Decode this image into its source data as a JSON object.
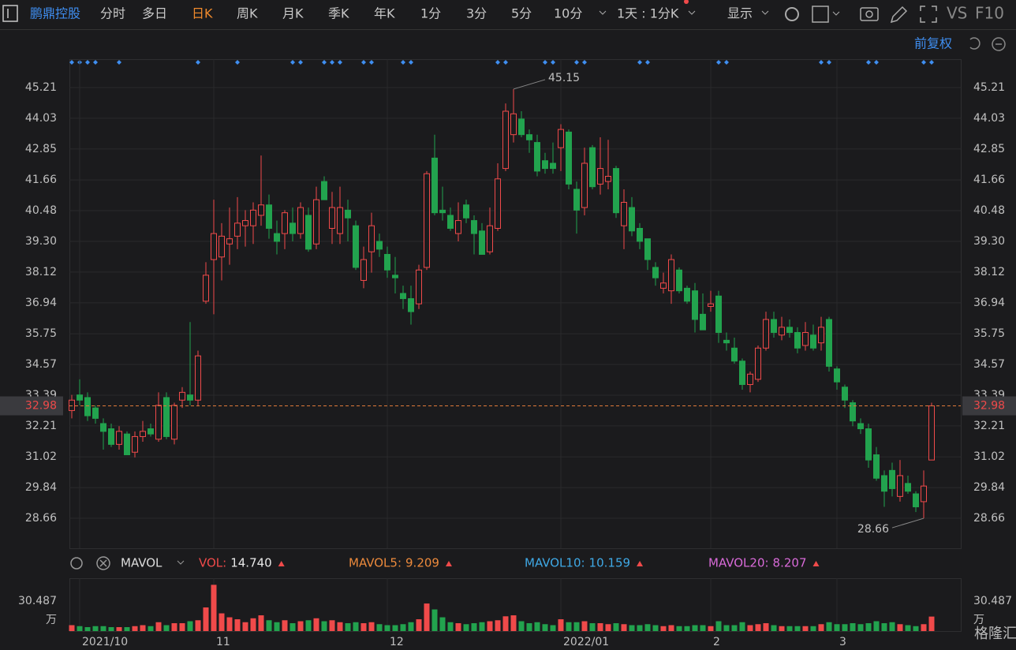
{
  "toolbar": {
    "stock": "鹏鼎控股",
    "tabs": [
      "分时",
      "多日",
      "日K",
      "周K",
      "月K",
      "季K",
      "年K",
      "1分",
      "3分",
      "5分",
      "10分"
    ],
    "active_tab": 2,
    "period": "1天 : 1分K",
    "display": "显示",
    "vs": "VS",
    "f10": "F10"
  },
  "adjust": "前复权",
  "volume_legend": {
    "label": "MAVOL",
    "items": [
      {
        "name": "VOL:",
        "value": "14.740",
        "color": "#f04a4a"
      },
      {
        "name": "MAVOL5:",
        "value": "9.209",
        "color": "#ec8a3c"
      },
      {
        "name": "MAVOL10:",
        "value": "10.159",
        "color": "#3fa9e6"
      },
      {
        "name": "MAVOL20:",
        "value": "8.207",
        "color": "#d86ad8"
      }
    ]
  },
  "watermark": "格隆汇",
  "chart_data": {
    "type": "candlestick",
    "categories": [
      null,
      "2021/10",
      null,
      null,
      null,
      null,
      null,
      null,
      null,
      null,
      null,
      null,
      null,
      null,
      null,
      null,
      null,
      null,
      "11",
      null,
      null,
      null,
      null,
      null,
      null,
      null,
      null,
      null,
      null,
      null,
      null,
      null,
      null,
      null,
      null,
      null,
      null,
      null,
      null,
      null,
      "12",
      null,
      null,
      null,
      null,
      null,
      null,
      null,
      null,
      null,
      null,
      null,
      null,
      null,
      null,
      null,
      null,
      null,
      null,
      null,
      null,
      null,
      "2022/01",
      null,
      null,
      null,
      null,
      null,
      null,
      null,
      null,
      null,
      null,
      null,
      null,
      null,
      null,
      null,
      null,
      null,
      null,
      "2",
      null,
      null,
      null,
      null,
      null,
      null,
      null,
      null,
      null,
      null,
      null,
      null,
      null,
      null,
      null,
      "3",
      null,
      null,
      null,
      null,
      null,
      null,
      null,
      null,
      null,
      null,
      null,
      null
    ],
    "open": [
      32.8,
      33.4,
      33.3,
      32.9,
      32.3,
      32.1,
      31.5,
      31.9,
      31.2,
      31.8,
      32.1,
      31.7,
      33.3,
      31.7,
      33.2,
      33.4,
      33.2,
      37.0,
      38.6,
      38.7,
      39.2,
      39.5,
      39.9,
      39.9,
      40.3,
      40.7,
      39.6,
      39.6,
      40.0,
      39.6,
      40.3,
      39.2,
      41.6,
      39.8,
      39.6,
      40.5,
      39.9,
      37.8,
      38.9,
      39.3,
      38.8,
      38.0,
      37.3,
      37.1,
      36.9,
      38.3,
      42.5,
      40.5,
      40.3,
      39.6,
      40.7,
      40.1,
      39.7,
      38.9,
      39.8,
      42.1,
      43.4,
      44.0,
      43.4,
      43.1,
      42.4,
      42.3,
      42.9,
      43.5,
      41.3,
      40.6,
      42.9,
      41.5,
      41.6,
      42.1,
      39.9,
      40.6,
      39.8,
      39.4,
      38.3,
      37.5,
      37.4,
      38.2,
      37.5,
      37.4,
      36.5,
      36.8,
      37.2,
      35.5,
      35.2,
      34.7,
      33.8,
      34.0,
      35.2,
      36.3,
      35.7,
      36.0,
      35.8,
      35.3,
      35.7,
      35.4,
      36.3,
      34.4,
      33.7,
      33.1,
      32.3,
      32.1,
      31.1,
      30.3,
      30.5,
      29.5,
      30.0,
      29.6,
      29.3,
      30.9
    ],
    "high": [
      33.4,
      34.0,
      33.5,
      33.0,
      32.5,
      32.3,
      32.2,
      32.0,
      32.0,
      32.4,
      32.3,
      33.5,
      33.5,
      33.1,
      33.7,
      36.2,
      35.1,
      38.5,
      40.9,
      40.0,
      40.6,
      41.0,
      40.5,
      40.8,
      42.6,
      41.1,
      40.1,
      40.5,
      40.6,
      40.8,
      40.6,
      41.4,
      41.8,
      41.2,
      41.4,
      40.9,
      40.1,
      39.1,
      40.4,
      39.6,
      39.1,
      38.7,
      37.6,
      37.6,
      38.4,
      42.0,
      43.4,
      41.4,
      40.6,
      40.8,
      40.9,
      40.3,
      40.0,
      40.6,
      42.3,
      44.6,
      45.15,
      44.3,
      43.6,
      43.4,
      42.7,
      43.1,
      43.8,
      43.6,
      41.6,
      42.9,
      43.0,
      43.3,
      43.2,
      42.2,
      41.3,
      41.0,
      40.0,
      39.4,
      38.5,
      38.1,
      38.8,
      38.3,
      37.6,
      37.7,
      37.3,
      37.4,
      37.4,
      35.8,
      35.6,
      34.8,
      34.3,
      35.3,
      36.6,
      36.6,
      36.4,
      36.3,
      36.0,
      36.2,
      36.1,
      36.4,
      36.4,
      34.5,
      33.8,
      33.2,
      32.5,
      32.3,
      31.4,
      30.5,
      30.8,
      30.9,
      30.3,
      29.7,
      30.5,
      33.1
    ],
    "low": [
      32.5,
      33.0,
      32.4,
      32.3,
      31.3,
      31.4,
      31.3,
      31.1,
      31.0,
      31.6,
      31.8,
      31.6,
      31.7,
      31.5,
      32.9,
      33.0,
      33.0,
      36.9,
      36.5,
      37.8,
      38.4,
      39.0,
      39.1,
      39.2,
      39.9,
      39.4,
      38.8,
      39.0,
      39.3,
      39.4,
      38.9,
      39.0,
      40.9,
      39.2,
      39.2,
      39.3,
      38.2,
      37.5,
      38.1,
      38.7,
      37.9,
      37.3,
      36.7,
      36.1,
      36.7,
      38.2,
      40.3,
      40.1,
      39.7,
      39.3,
      40.0,
      38.8,
      38.8,
      38.8,
      39.7,
      42.0,
      43.1,
      43.3,
      42.7,
      41.8,
      41.9,
      41.9,
      42.0,
      41.3,
      39.6,
      40.3,
      41.3,
      41.1,
      41.3,
      40.2,
      39.0,
      39.5,
      39.0,
      38.2,
      37.6,
      37.3,
      36.9,
      37.3,
      36.9,
      35.8,
      35.9,
      36.6,
      35.4,
      35.1,
      34.6,
      33.6,
      33.5,
      33.9,
      35.1,
      35.6,
      35.5,
      35.6,
      35.0,
      35.1,
      35.1,
      35.1,
      34.3,
      33.6,
      32.9,
      32.2,
      31.9,
      30.6,
      30.1,
      29.1,
      29.5,
      29.3,
      29.6,
      28.9,
      28.66,
      30.9
    ],
    "close": [
      33.2,
      33.2,
      32.6,
      32.5,
      32.0,
      31.5,
      32.0,
      31.1,
      31.8,
      32.0,
      31.9,
      33.0,
      31.8,
      33.0,
      33.5,
      33.2,
      34.9,
      38.0,
      39.6,
      39.5,
      39.4,
      40.0,
      40.1,
      40.5,
      40.7,
      39.8,
      39.3,
      40.4,
      39.6,
      40.6,
      39.0,
      40.9,
      40.9,
      40.6,
      40.6,
      40.2,
      38.3,
      38.6,
      39.9,
      39.0,
      38.2,
      37.9,
      37.1,
      36.6,
      38.2,
      41.9,
      40.4,
      40.4,
      39.8,
      40.1,
      40.2,
      39.6,
      38.8,
      39.9,
      41.7,
      44.3,
      44.2,
      43.4,
      43.2,
      42.0,
      42.1,
      42.1,
      43.6,
      41.5,
      40.5,
      42.3,
      41.4,
      42.1,
      41.8,
      40.4,
      40.8,
      39.7,
      39.3,
      38.6,
      37.9,
      37.7,
      38.6,
      37.4,
      37.0,
      36.3,
      35.9,
      36.9,
      35.8,
      35.4,
      34.7,
      33.8,
      34.2,
      35.2,
      36.3,
      35.8,
      36.0,
      35.8,
      35.2,
      35.8,
      35.2,
      36.0,
      34.5,
      33.9,
      33.2,
      32.4,
      32.1,
      30.9,
      30.2,
      29.7,
      29.8,
      30.3,
      29.7,
      29.1,
      29.9,
      32.98
    ],
    "volume": [
      6,
      5,
      4,
      5,
      5,
      4,
      4,
      4,
      5,
      6,
      5,
      9,
      6,
      8,
      8,
      10,
      11,
      24,
      47,
      18,
      14,
      12,
      9,
      13,
      16,
      11,
      9,
      11,
      8,
      10,
      11,
      13,
      10,
      11,
      9,
      8,
      9,
      8,
      9,
      7,
      6,
      6,
      7,
      9,
      12,
      28,
      22,
      14,
      9,
      8,
      7,
      8,
      9,
      10,
      11,
      15,
      16,
      10,
      8,
      9,
      7,
      6,
      12,
      9,
      9,
      10,
      8,
      8,
      7,
      8,
      7,
      6,
      6,
      7,
      6,
      5,
      6,
      5,
      5,
      6,
      6,
      5,
      10,
      6,
      6,
      9,
      6,
      7,
      8,
      6,
      5,
      5,
      5,
      5,
      5,
      7,
      9,
      7,
      7,
      8,
      7,
      8,
      10,
      8,
      9,
      7,
      6,
      5,
      7,
      14.74
    ],
    "ylim": [
      27.51,
      46.3
    ],
    "yticks": [
      45.21,
      44.03,
      42.85,
      41.66,
      40.48,
      {
        "value": 39.3,
        "label": "39.30"
      },
      38.12,
      36.94,
      35.75,
      34.57,
      33.39,
      32.21,
      31.02,
      29.84,
      28.66
    ],
    "volume_ylim": [
      0,
      53.7
    ],
    "volume_yticks": [
      30.487
    ],
    "volume_unit": "万",
    "up_color": "#f04a4a",
    "down_color": "#22a34e",
    "grid": true
  }
}
